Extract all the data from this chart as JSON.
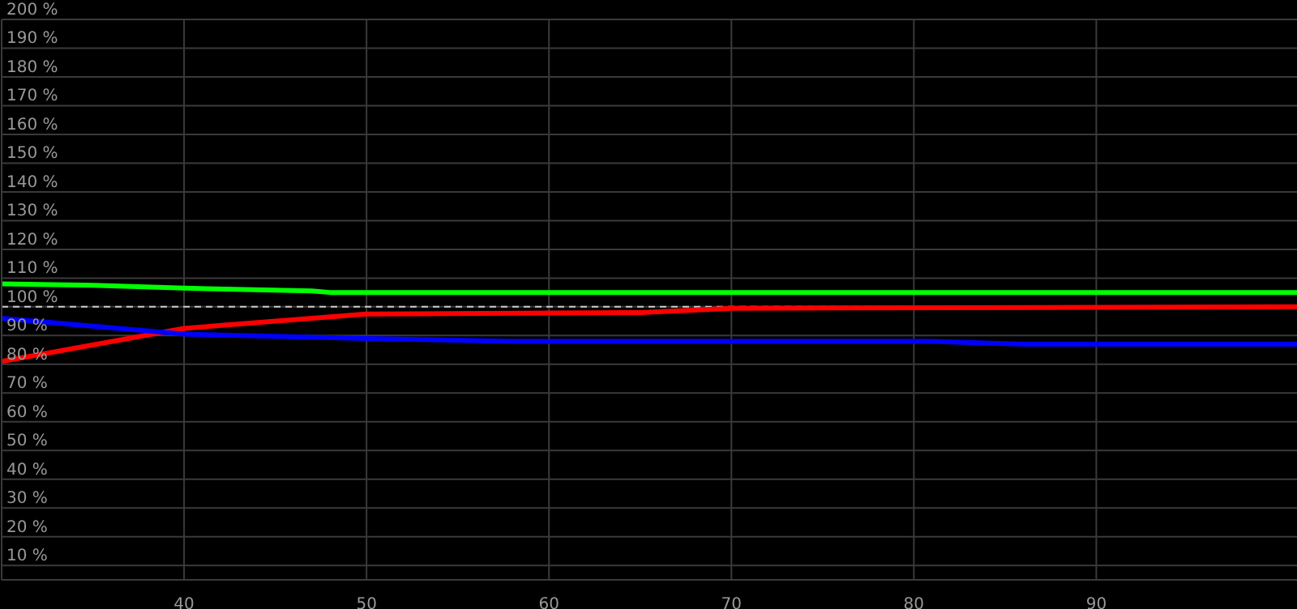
{
  "chart_data": {
    "type": "line",
    "xlim": [
      30,
      101
    ],
    "xticks": [
      40,
      50,
      60,
      70,
      80,
      90
    ],
    "ylim": [
      5,
      200
    ],
    "yticks": [
      {
        "value": 10,
        "label": "10 %"
      },
      {
        "value": 20,
        "label": "20 %"
      },
      {
        "value": 30,
        "label": "30 %"
      },
      {
        "value": 40,
        "label": "40 %"
      },
      {
        "value": 50,
        "label": "50 %"
      },
      {
        "value": 60,
        "label": "60 %"
      },
      {
        "value": 70,
        "label": "70 %"
      },
      {
        "value": 80,
        "label": "80 %"
      },
      {
        "value": 90,
        "label": "90 %"
      },
      {
        "value": 100,
        "label": "100 %"
      },
      {
        "value": 110,
        "label": "110 %"
      },
      {
        "value": 120,
        "label": "120 %"
      },
      {
        "value": 130,
        "label": "130 %"
      },
      {
        "value": 140,
        "label": "140 %"
      },
      {
        "value": 150,
        "label": "150 %"
      },
      {
        "value": 160,
        "label": "160 %"
      },
      {
        "value": 170,
        "label": "170 %"
      },
      {
        "value": 180,
        "label": "180 %"
      },
      {
        "value": 190,
        "label": "190 %"
      },
      {
        "value": 200,
        "label": "200 %"
      }
    ],
    "grid": true,
    "marker": "none",
    "line_style": "solid",
    "ref_lines": [
      {
        "axis": "y",
        "value": 100,
        "color": "#cccccc",
        "line_style": "dashed"
      }
    ],
    "series": [
      {
        "color": "#00ff00",
        "x": [
          30,
          35,
          40,
          47,
          48,
          101
        ],
        "values": [
          108,
          107.5,
          106.5,
          105.5,
          105,
          105
        ]
      },
      {
        "color": "#ff0000",
        "x": [
          30,
          40,
          50,
          65,
          70,
          101
        ],
        "values": [
          81,
          92.5,
          97.5,
          98,
          99.5,
          100
        ]
      },
      {
        "color": "#0000ff",
        "x": [
          30,
          40,
          50,
          58,
          81,
          86,
          101
        ],
        "values": [
          96,
          90.5,
          89,
          88,
          88,
          87,
          87
        ]
      }
    ]
  }
}
